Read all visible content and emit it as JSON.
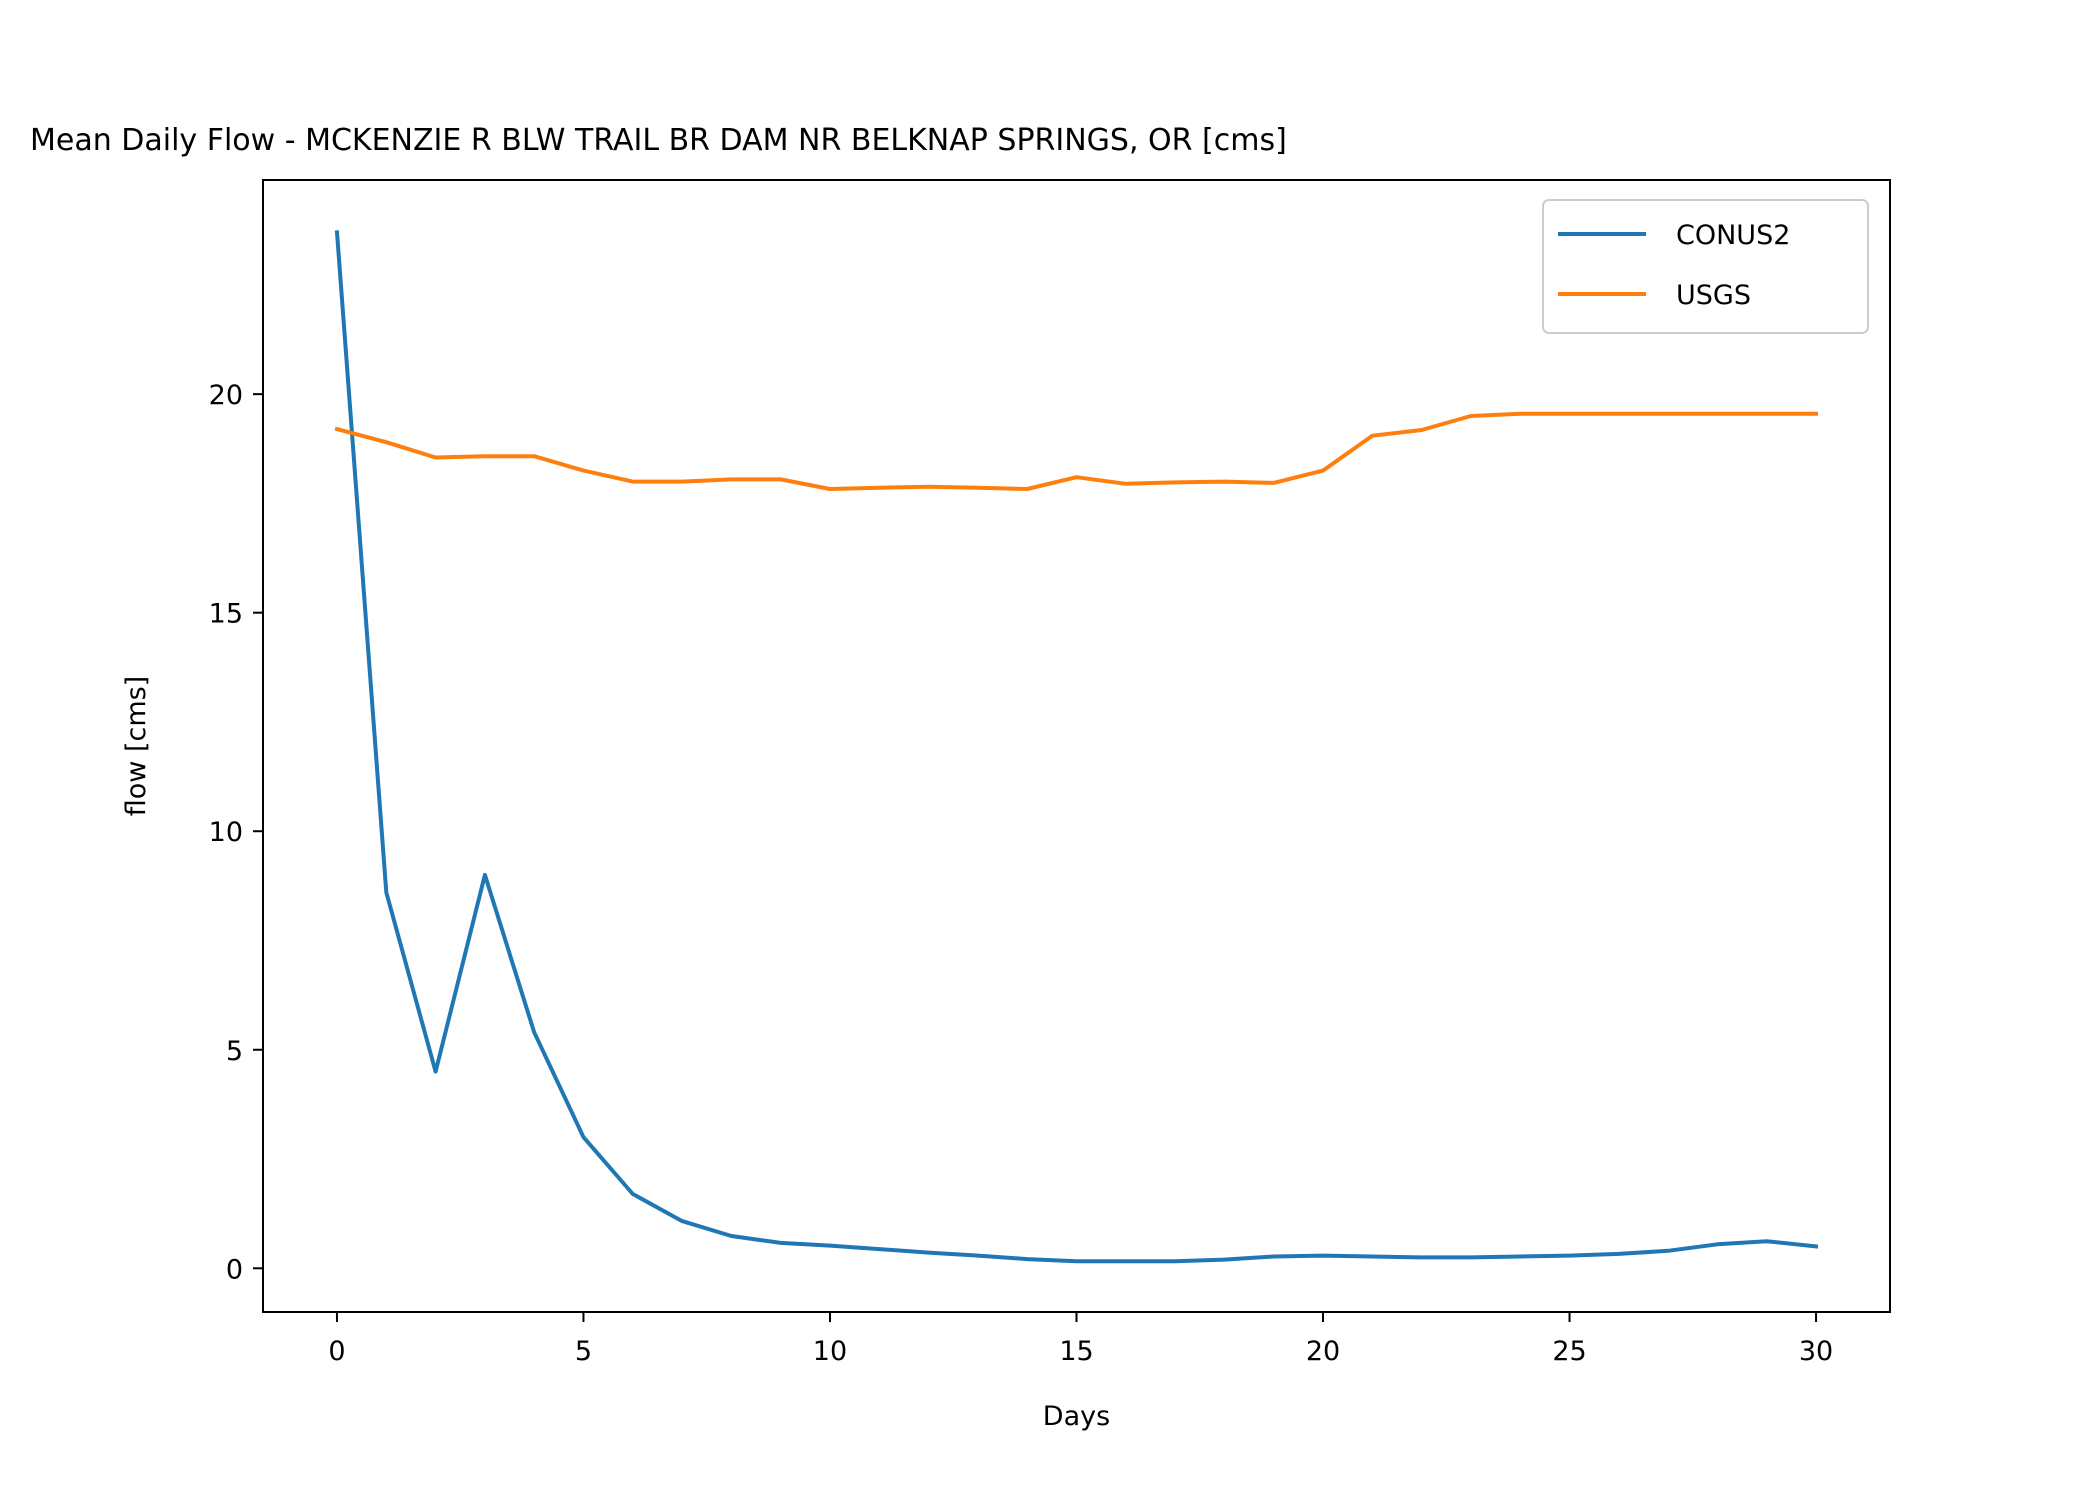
{
  "chart_data": {
    "type": "line",
    "title": "Mean Daily Flow - MCKENZIE R BLW TRAIL BR DAM NR BELKNAP SPRINGS, OR [cms]",
    "xlabel": "Days",
    "ylabel": "flow [cms]",
    "xlim": [
      -1.5,
      31.5
    ],
    "ylim": [
      -1.0,
      24.9
    ],
    "xticks": [
      0,
      5,
      10,
      15,
      20,
      25,
      30
    ],
    "yticks": [
      0,
      5,
      10,
      15,
      20
    ],
    "grid": false,
    "legend_position": "top-right",
    "x": [
      0,
      1,
      2,
      3,
      4,
      5,
      6,
      7,
      8,
      9,
      10,
      11,
      12,
      13,
      14,
      15,
      16,
      17,
      18,
      19,
      20,
      21,
      22,
      23,
      24,
      25,
      26,
      27,
      28,
      29,
      30
    ],
    "series": [
      {
        "name": "CONUS2",
        "color": "#1f77b4",
        "values": [
          23.7,
          8.6,
          4.5,
          9.0,
          5.4,
          3.0,
          1.7,
          1.08,
          0.74,
          0.58,
          0.52,
          0.44,
          0.36,
          0.29,
          0.21,
          0.16,
          0.16,
          0.16,
          0.2,
          0.27,
          0.29,
          0.27,
          0.25,
          0.25,
          0.27,
          0.29,
          0.33,
          0.4,
          0.55,
          0.62,
          0.5
        ]
      },
      {
        "name": "USGS",
        "color": "#ff7f0e",
        "values": [
          19.2,
          18.9,
          18.55,
          18.58,
          18.58,
          18.25,
          18.0,
          18.0,
          18.05,
          18.05,
          17.83,
          17.86,
          17.88,
          17.86,
          17.83,
          18.1,
          17.95,
          17.98,
          18.0,
          17.97,
          18.25,
          19.05,
          19.18,
          19.5,
          19.55,
          19.55,
          19.55,
          19.55,
          19.55,
          19.55,
          19.55
        ]
      }
    ]
  }
}
